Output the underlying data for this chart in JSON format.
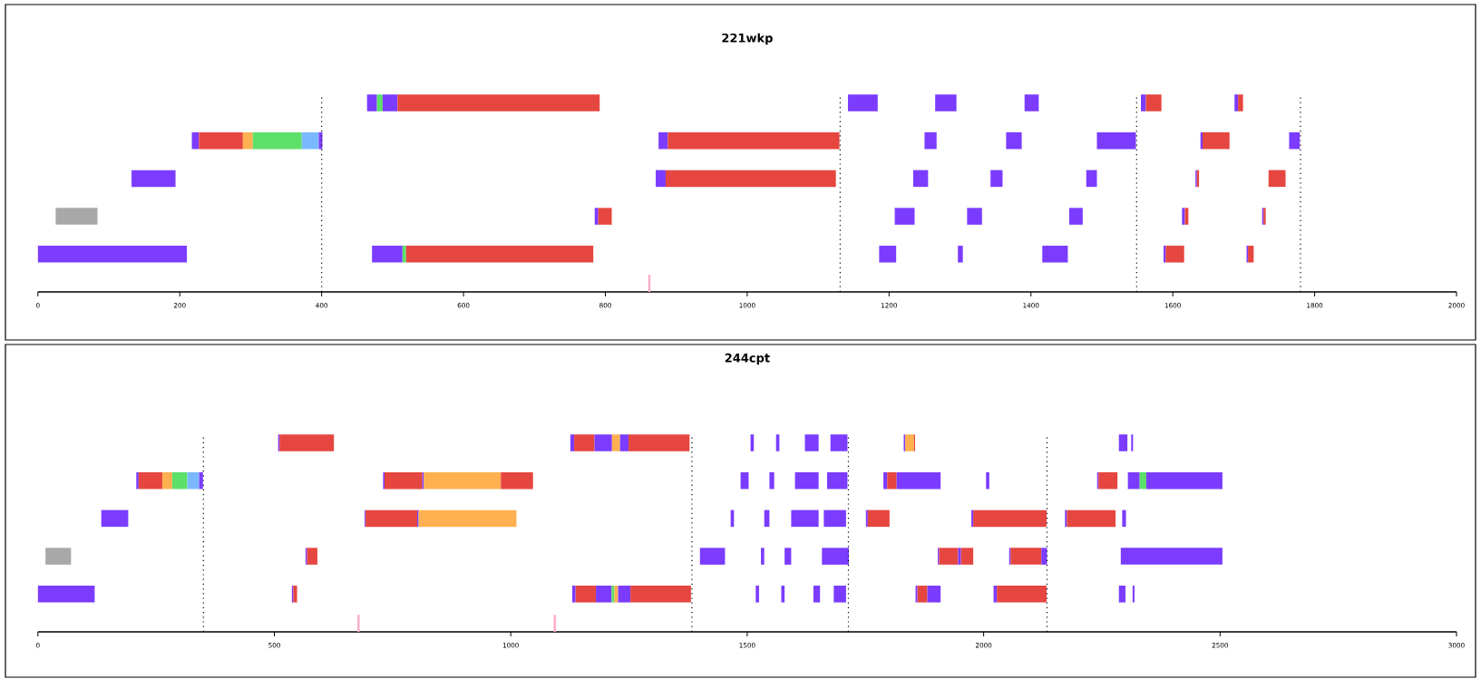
{
  "chart_data": [
    {
      "type": "bar",
      "orientation": "horizontal",
      "title": "221wkp",
      "categories": [
        null,
        null,
        null,
        null,
        null
      ],
      "xlim": [
        0,
        2000
      ],
      "xticks": [
        0,
        200,
        400,
        600,
        800,
        1000,
        1200,
        1400,
        1600,
        1800,
        2000
      ],
      "tick_labels": "x",
      "ref_lines": [
        {
          "axis": "x",
          "value": 400,
          "color": "#000000",
          "line_style": "dotted"
        },
        {
          "axis": "x",
          "value": 1131,
          "color": "#000000",
          "line_style": "dotted"
        },
        {
          "axis": "x",
          "value": 1549,
          "color": "#000000",
          "line_style": "dotted"
        },
        {
          "axis": "x",
          "value": 1780,
          "color": "#000000",
          "line_style": "dotted"
        },
        {
          "axis": "x",
          "value": 862,
          "color": "#ffaacc",
          "line_style": "solid"
        }
      ],
      "series": [
        {
          "base": [
            464,
            217,
            132,
            25,
            0
          ],
          "values": [
            14,
            10,
            62,
            59,
            210
          ],
          "colors": [
            "#7b3cff",
            "#7b3cff",
            "#7b3cff",
            "#a8a8a8",
            "#7b3cff"
          ]
        },
        {
          "base": [
            478,
            227,
            871,
            785,
            471
          ],
          "values": [
            8,
            62,
            14,
            5,
            43
          ],
          "colors": [
            "#5ce06a",
            "#e64640",
            "#7b3cff",
            "#7b3cff",
            "#7b3cff"
          ]
        },
        {
          "base": [
            486,
            289,
            885,
            790,
            514
          ],
          "values": [
            21,
            14,
            240,
            19,
            5
          ],
          "colors": [
            "#7b3cff",
            "#ffb050",
            "#e64640",
            "#e64640",
            "#5ce06a"
          ]
        },
        {
          "base": [
            507,
            303,
            1234,
            1208,
            519
          ],
          "values": [
            285,
            69,
            21,
            28,
            264
          ],
          "colors": [
            "#e64640",
            "#5ce06a",
            "#7b3cff",
            "#7b3cff",
            "#e64640"
          ]
        },
        {
          "base": [
            1142,
            372,
            1343,
            1310,
            1186
          ],
          "values": [
            42,
            24,
            17,
            21,
            24
          ],
          "colors": [
            "#7b3cff",
            "#7ab8ff",
            "#7b3cff",
            "#7b3cff",
            "#7b3cff"
          ]
        },
        {
          "base": [
            1265,
            396,
            1478,
            1454,
            1297
          ],
          "values": [
            30,
            5,
            15,
            19,
            7
          ],
          "colors": [
            "#7b3cff",
            "#7b3cff",
            "#7b3cff",
            "#7b3cff",
            "#7b3cff"
          ]
        },
        {
          "base": [
            1391,
            875,
            1632,
            1613,
            1416
          ],
          "values": [
            20,
            13,
            2,
            4,
            36
          ],
          "colors": [
            "#7b3cff",
            "#7b3cff",
            "#7b3cff",
            "#7b3cff",
            "#7b3cff"
          ]
        },
        {
          "base": [
            1555,
            888,
            1634,
            1617,
            1587
          ],
          "values": [
            7,
            242,
            3,
            5,
            3
          ],
          "colors": [
            "#7b3cff",
            "#e64640",
            "#e64640",
            "#e64640",
            "#7b3cff"
          ]
        },
        {
          "base": [
            1562,
            1250,
            1735,
            1726,
            1590
          ],
          "values": [
            22,
            17,
            24,
            2,
            26
          ],
          "colors": [
            "#e64640",
            "#7b3cff",
            "#e64640",
            "#7b3cff",
            "#e64640"
          ]
        },
        {
          "base": [
            1687,
            1365,
            null,
            1728,
            1704
          ],
          "values": [
            5,
            22,
            null,
            3,
            2
          ],
          "colors": [
            "#7b3cff",
            "#7b3cff",
            null,
            "#e64640",
            "#7b3cff"
          ]
        },
        {
          "base": [
            1692,
            1493,
            null,
            null,
            1706
          ],
          "values": [
            7,
            55,
            null,
            null,
            8
          ],
          "colors": [
            "#e64640",
            "#7b3cff",
            null,
            null,
            "#e64640"
          ]
        },
        {
          "base": [
            null,
            1639,
            null,
            null,
            null
          ],
          "values": [
            null,
            3,
            null,
            null,
            null
          ],
          "colors": [
            null,
            "#7b3cff",
            null,
            null,
            null
          ]
        },
        {
          "base": [
            null,
            1642,
            null,
            null,
            null
          ],
          "values": [
            null,
            38,
            null,
            null,
            null
          ],
          "colors": [
            null,
            "#e64640",
            null,
            null,
            null
          ]
        },
        {
          "base": [
            null,
            1764,
            null,
            null,
            null
          ],
          "values": [
            null,
            15,
            null,
            null,
            null
          ],
          "colors": [
            null,
            "#7b3cff",
            null,
            null,
            null
          ]
        }
      ]
    },
    {
      "type": "bar",
      "orientation": "horizontal",
      "title": "244cpt",
      "categories": [
        null,
        null,
        null,
        null,
        null
      ],
      "xlim": [
        0,
        3000
      ],
      "xticks": [
        0,
        500,
        1000,
        1500,
        2000,
        2500,
        3000
      ],
      "tick_labels": "x",
      "ref_lines": [
        {
          "axis": "x",
          "value": 350,
          "color": "#000000",
          "line_style": "dotted"
        },
        {
          "axis": "x",
          "value": 1383,
          "color": "#000000",
          "line_style": "dotted"
        },
        {
          "axis": "x",
          "value": 1714,
          "color": "#000000",
          "line_style": "dotted"
        },
        {
          "axis": "x",
          "value": 2134,
          "color": "#000000",
          "line_style": "dotted"
        },
        {
          "axis": "x",
          "value": 678,
          "color": "#ffaacc",
          "line_style": "solid"
        },
        {
          "axis": "x",
          "value": 1093,
          "color": "#ffaacc",
          "line_style": "solid"
        }
      ],
      "series": [
        {
          "base": [
            508,
            208,
            134,
            16,
            0
          ],
          "values": [
            3,
            5,
            57,
            54,
            120
          ],
          "colors": [
            "#7b3cff",
            "#7b3cff",
            "#7b3cff",
            "#a8a8a8",
            "#7b3cff"
          ]
        },
        {
          "base": [
            511,
            213,
            691,
            566,
            537
          ],
          "values": [
            115,
            50,
            2,
            3,
            3
          ],
          "colors": [
            "#e64640",
            "#e64640",
            "#7b3cff",
            "#7b3cff",
            "#7b3cff"
          ]
        },
        {
          "base": [
            1126,
            263,
            693,
            569,
            540
          ],
          "values": [
            8,
            21,
            109,
            22,
            8
          ],
          "colors": [
            "#7b3cff",
            "#ffb050",
            "#e64640",
            "#e64640",
            "#e64640"
          ]
        },
        {
          "base": [
            1134,
            284,
            802,
            1400,
            1130
          ],
          "values": [
            43,
            32,
            3,
            53,
            7
          ],
          "colors": [
            "#e64640",
            "#5ce06a",
            "#7b3cff",
            "#7b3cff",
            "#7b3cff"
          ]
        },
        {
          "base": [
            1177,
            316,
            805,
            1529,
            1137
          ],
          "values": [
            37,
            25,
            207,
            7,
            43
          ],
          "colors": [
            "#7b3cff",
            "#7ab8ff",
            "#ffb050",
            "#7b3cff",
            "#e64640"
          ]
        },
        {
          "base": [
            1214,
            341,
            1465,
            1579,
            1180
          ],
          "values": [
            17,
            8,
            7,
            14,
            33
          ],
          "colors": [
            "#ffb050",
            "#7b3cff",
            "#7b3cff",
            "#7b3cff",
            "#7b3cff"
          ]
        },
        {
          "base": [
            1231,
            730,
            1536,
            1658,
            1213
          ],
          "values": [
            18,
            3,
            11,
            57,
            6
          ],
          "colors": [
            "#7b3cff",
            "#7b3cff",
            "#7b3cff",
            "#7b3cff",
            "#5ce06a"
          ]
        },
        {
          "base": [
            1249,
            733,
            1593,
            1903,
            1219
          ],
          "values": [
            129,
            80,
            58,
            3,
            8
          ],
          "colors": [
            "#e64640",
            "#e64640",
            "#7b3cff",
            "#7b3cff",
            "#ffb050"
          ]
        },
        {
          "base": [
            1507,
            813,
            1662,
            1906,
            1227
          ],
          "values": [
            7,
            3,
            47,
            40,
            26
          ],
          "colors": [
            "#7b3cff",
            "#7b3cff",
            "#7b3cff",
            "#e64640",
            "#7b3cff"
          ]
        },
        {
          "base": [
            1561,
            816,
            1751,
            1946,
            1253
          ],
          "values": [
            7,
            163,
            4,
            6,
            128
          ],
          "colors": [
            "#7b3cff",
            "#ffb050",
            "#7b3cff",
            "#7b3cff",
            "#e64640"
          ]
        },
        {
          "base": [
            1622,
            979,
            1755,
            1952,
            1518
          ],
          "values": [
            29,
            68,
            46,
            26,
            7
          ],
          "colors": [
            "#7b3cff",
            "#e64640",
            "#e64640",
            "#e64640",
            "#7b3cff"
          ]
        },
        {
          "base": [
            1676,
            1486,
            1974,
            2054,
            1572
          ],
          "values": [
            36,
            17,
            4,
            3,
            7
          ],
          "colors": [
            "#7b3cff",
            "#7b3cff",
            "#7b3cff",
            "#7b3cff",
            "#7b3cff"
          ]
        },
        {
          "base": [
            1831,
            1547,
            1978,
            2057,
            1640
          ],
          "values": [
            3,
            10,
            155,
            65,
            14
          ],
          "colors": [
            "#7b3cff",
            "#7b3cff",
            "#e64640",
            "#e64640",
            "#7b3cff"
          ]
        },
        {
          "base": [
            1834,
            1601,
            2172,
            2122,
            1683
          ],
          "values": [
            19,
            50,
            4,
            12,
            26
          ],
          "colors": [
            "#ffb050",
            "#7b3cff",
            "#7b3cff",
            "#7b3cff",
            "#7b3cff"
          ]
        },
        {
          "base": [
            1853,
            1669,
            2176,
            2290,
            1856
          ],
          "values": [
            2,
            43,
            103,
            215,
            4
          ],
          "colors": [
            "#e64640",
            "#7b3cff",
            "#e64640",
            "#7b3cff",
            "#7b3cff"
          ]
        },
        {
          "base": [
            2286,
            1788,
            2293,
            null,
            1860
          ],
          "values": [
            18,
            8,
            8,
            null,
            21
          ],
          "colors": [
            "#7b3cff",
            "#7b3cff",
            "#7b3cff",
            null,
            "#e64640"
          ]
        },
        {
          "base": [
            2312,
            1796,
            null,
            null,
            1881
          ],
          "values": [
            4,
            20,
            null,
            null,
            28
          ],
          "colors": [
            "#7b3cff",
            "#e64640",
            null,
            null,
            "#7b3cff"
          ]
        },
        {
          "base": [
            null,
            1816,
            null,
            null,
            2021
          ],
          "values": [
            null,
            93,
            null,
            null,
            7
          ],
          "colors": [
            null,
            "#7b3cff",
            null,
            null,
            "#7b3cff"
          ]
        },
        {
          "base": [
            null,
            2005,
            null,
            null,
            2028
          ],
          "values": [
            null,
            7,
            null,
            null,
            105
          ],
          "colors": [
            null,
            "#7b3cff",
            null,
            null,
            "#e64640"
          ]
        },
        {
          "base": [
            null,
            2240,
            null,
            null,
            2286
          ],
          "values": [
            null,
            3,
            null,
            null,
            14
          ],
          "colors": [
            null,
            "#7b3cff",
            null,
            null,
            "#7b3cff"
          ]
        },
        {
          "base": [
            null,
            2243,
            null,
            null,
            2315
          ],
          "values": [
            null,
            40,
            null,
            null,
            4
          ],
          "colors": [
            null,
            "#e64640",
            null,
            null,
            "#7b3cff"
          ]
        },
        {
          "base": [
            null,
            2305,
            null,
            null,
            null
          ],
          "values": [
            null,
            25,
            null,
            null,
            null
          ],
          "colors": [
            null,
            "#7b3cff",
            null,
            null,
            null
          ]
        },
        {
          "base": [
            null,
            2330,
            null,
            null,
            null
          ],
          "values": [
            null,
            14,
            null,
            null,
            null
          ],
          "colors": [
            null,
            "#5ce06a",
            null,
            null,
            null
          ]
        },
        {
          "base": [
            null,
            2344,
            null,
            null,
            null
          ],
          "values": [
            null,
            161,
            null,
            null,
            null
          ],
          "colors": [
            null,
            "#7b3cff",
            null,
            null,
            null
          ]
        }
      ]
    }
  ]
}
